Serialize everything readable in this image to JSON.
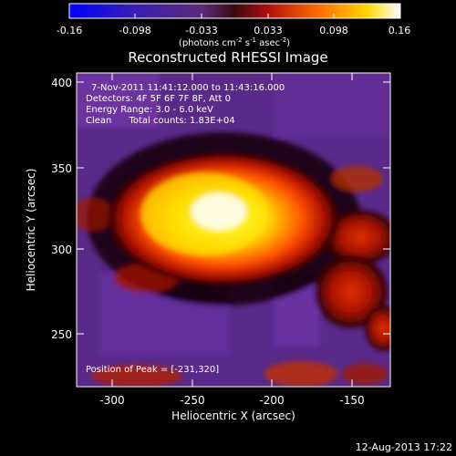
{
  "colorbar": {
    "tick_labels": [
      "-0.16",
      "-0.098",
      "-0.033",
      "0.033",
      "0.098",
      "0.16"
    ],
    "unit_prefix": "(photons cm",
    "unit_exp1": "-2",
    "unit_mid": " s",
    "unit_exp2": "-1",
    "unit_mid2": " asec",
    "unit_exp3": "-2",
    "unit_suffix": ")"
  },
  "image": {
    "title": "Reconstructed RHESSI Image",
    "annotations": [
      "7-Nov-2011 11:41:12.000 to 11:43:16.000",
      "Detectors: 4F 5F 6F 7F 8F, Att 0",
      "Energy Range: 3.0 - 6.0 keV",
      "Clean      Total counts: 1.83E+04"
    ],
    "peak_label": "Position of Peak = [-231,320]"
  },
  "axes": {
    "xlabel": "Heliocentric X (arcsec)",
    "ylabel": "Heliocentric Y (arcsec)",
    "x_ticks": [
      "-300",
      "-250",
      "-200",
      "-150"
    ],
    "y_ticks": [
      "400",
      "350",
      "300",
      "250"
    ]
  },
  "footer": {
    "timestamp": "12-Aug-2013 17:22"
  }
}
